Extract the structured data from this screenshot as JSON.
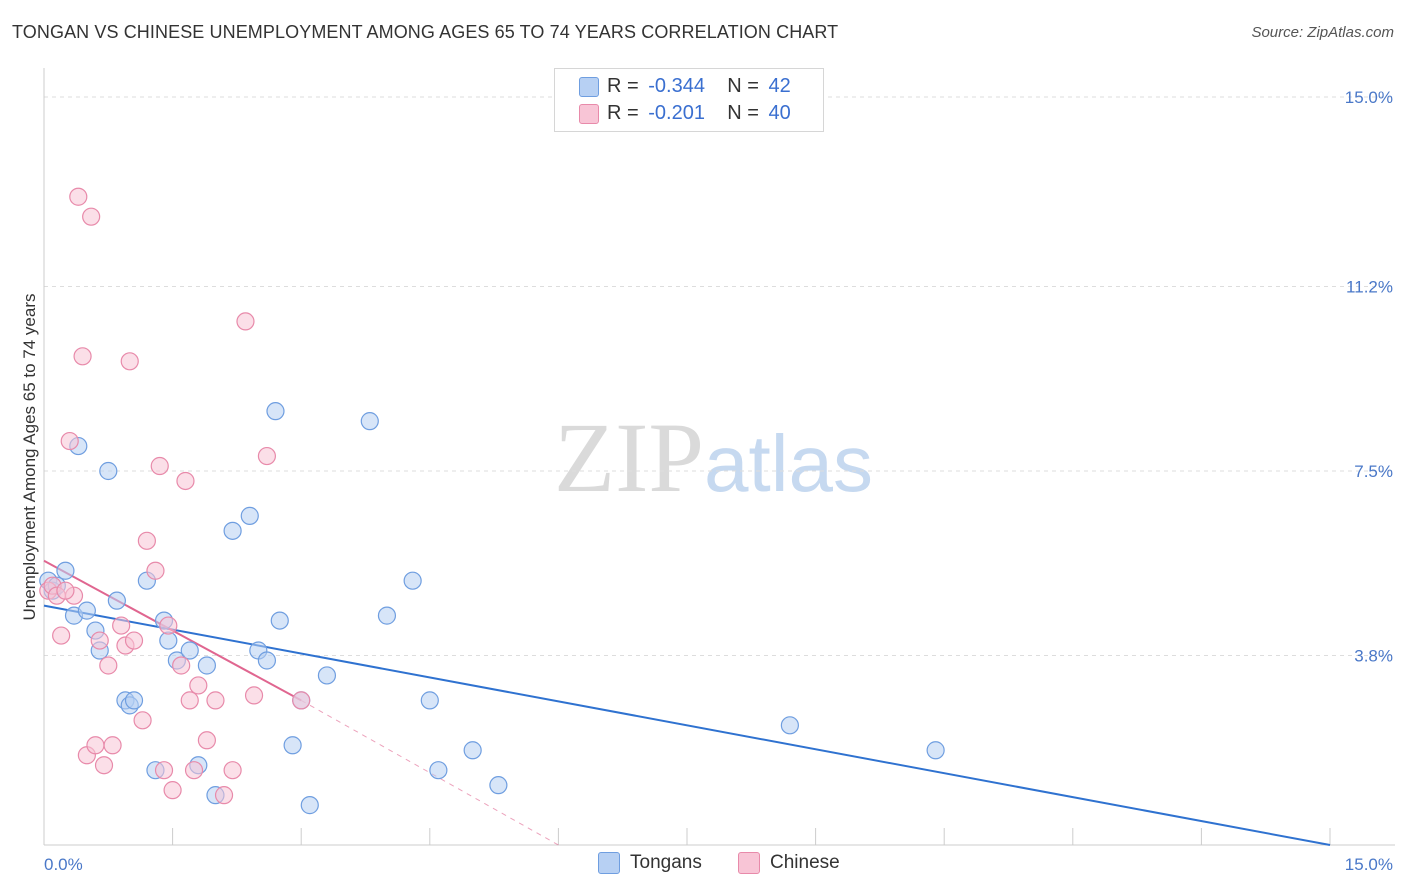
{
  "chart_data": {
    "type": "scatter",
    "title": "TONGAN VS CHINESE UNEMPLOYMENT AMONG AGES 65 TO 74 YEARS CORRELATION CHART",
    "source": "Source: ZipAtlas.com",
    "xlabel": "",
    "ylabel": "Unemployment Among Ages 65 to 74 years",
    "xlim": [
      0,
      15
    ],
    "ylim": [
      0,
      15
    ],
    "x_tick_labels": [
      "0.0%",
      "15.0%"
    ],
    "y_tick_values": [
      3.8,
      7.5,
      11.2,
      15.0
    ],
    "y_tick_labels": [
      "3.8%",
      "7.5%",
      "11.2%",
      "15.0%"
    ],
    "watermark": {
      "zip": "ZIP",
      "atlas": "atlas"
    },
    "legend": {
      "rows": [
        {
          "r_label": "R =",
          "r_value": "-0.344",
          "n_label": "N =",
          "n_value": "42"
        },
        {
          "r_label": "R =",
          "r_value": "-0.201",
          "n_label": "N =",
          "n_value": "40"
        }
      ]
    },
    "colors": {
      "tongans_fill": "#b7d0f3",
      "tongans_stroke": "#6f9ee0",
      "tongans_line": "#2f72d0",
      "chinese_fill": "#f8c5d6",
      "chinese_stroke": "#e88aaa",
      "chinese_line": "#e06690"
    },
    "series": [
      {
        "name": "Tongans",
        "points": [
          [
            0.05,
            5.3
          ],
          [
            0.1,
            5.1
          ],
          [
            0.15,
            5.2
          ],
          [
            0.25,
            5.5
          ],
          [
            0.35,
            4.6
          ],
          [
            0.4,
            8.0
          ],
          [
            0.5,
            4.7
          ],
          [
            0.6,
            4.3
          ],
          [
            0.65,
            3.9
          ],
          [
            0.75,
            7.5
          ],
          [
            0.85,
            4.9
          ],
          [
            0.95,
            2.9
          ],
          [
            1.0,
            2.8
          ],
          [
            1.05,
            2.9
          ],
          [
            1.2,
            5.3
          ],
          [
            1.3,
            1.5
          ],
          [
            1.4,
            4.5
          ],
          [
            1.45,
            4.1
          ],
          [
            1.55,
            3.7
          ],
          [
            1.7,
            3.9
          ],
          [
            1.8,
            1.6
          ],
          [
            1.9,
            3.6
          ],
          [
            2.0,
            1.0
          ],
          [
            2.2,
            6.3
          ],
          [
            2.4,
            6.6
          ],
          [
            2.5,
            3.9
          ],
          [
            2.6,
            3.7
          ],
          [
            2.7,
            8.7
          ],
          [
            2.75,
            4.5
          ],
          [
            2.9,
            2.0
          ],
          [
            3.0,
            2.9
          ],
          [
            3.1,
            0.8
          ],
          [
            3.3,
            3.4
          ],
          [
            3.8,
            8.5
          ],
          [
            4.0,
            4.6
          ],
          [
            4.3,
            5.3
          ],
          [
            4.5,
            2.9
          ],
          [
            4.6,
            1.5
          ],
          [
            5.0,
            1.9
          ],
          [
            5.3,
            1.2
          ],
          [
            8.7,
            2.4
          ],
          [
            10.4,
            1.9
          ]
        ],
        "trend": [
          [
            0,
            4.8
          ],
          [
            15,
            0.0
          ]
        ]
      },
      {
        "name": "Chinese",
        "points": [
          [
            0.05,
            5.1
          ],
          [
            0.1,
            5.2
          ],
          [
            0.15,
            5.0
          ],
          [
            0.2,
            4.2
          ],
          [
            0.3,
            8.1
          ],
          [
            0.35,
            5.0
          ],
          [
            0.4,
            13.0
          ],
          [
            0.45,
            9.8
          ],
          [
            0.5,
            1.8
          ],
          [
            0.55,
            12.6
          ],
          [
            0.6,
            2.0
          ],
          [
            0.65,
            4.1
          ],
          [
            0.7,
            1.6
          ],
          [
            0.75,
            3.6
          ],
          [
            0.8,
            2.0
          ],
          [
            0.9,
            4.4
          ],
          [
            0.95,
            4.0
          ],
          [
            1.0,
            9.7
          ],
          [
            1.05,
            4.1
          ],
          [
            1.15,
            2.5
          ],
          [
            1.2,
            6.1
          ],
          [
            1.3,
            5.5
          ],
          [
            1.35,
            7.6
          ],
          [
            1.4,
            1.5
          ],
          [
            1.45,
            4.4
          ],
          [
            1.5,
            1.1
          ],
          [
            1.6,
            3.6
          ],
          [
            1.65,
            7.3
          ],
          [
            1.75,
            1.5
          ],
          [
            1.8,
            3.2
          ],
          [
            1.9,
            2.1
          ],
          [
            2.0,
            2.9
          ],
          [
            2.1,
            1.0
          ],
          [
            2.2,
            1.5
          ],
          [
            2.35,
            10.5
          ],
          [
            2.45,
            3.0
          ],
          [
            2.6,
            7.8
          ],
          [
            3.0,
            2.9
          ],
          [
            1.7,
            2.9
          ],
          [
            0.25,
            5.1
          ]
        ],
        "trend_solid": [
          [
            0,
            5.7
          ],
          [
            3.0,
            2.9
          ]
        ],
        "trend_dashed": [
          [
            3.0,
            2.9
          ],
          [
            6.0,
            0.0
          ]
        ]
      }
    ]
  },
  "bottom_legend": [
    {
      "label": "Tongans"
    },
    {
      "label": "Chinese"
    }
  ]
}
